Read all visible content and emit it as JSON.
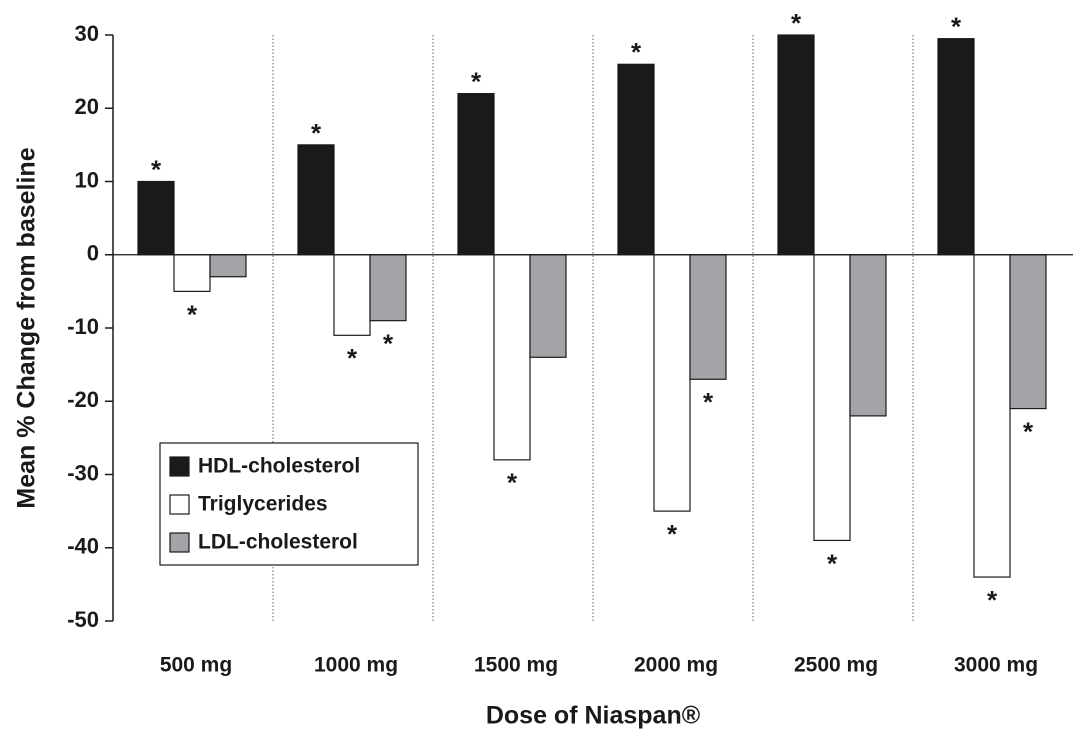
{
  "chart_data": {
    "type": "bar",
    "x_label": "Dose of Niaspan®",
    "y_label": "Mean % Change from baseline",
    "categories": [
      "500 mg",
      "1000 mg",
      "1500 mg",
      "2000 mg",
      "2500 mg",
      "3000 mg"
    ],
    "series": [
      {
        "name": "HDL-cholesterol",
        "color": "#1a1a1a",
        "values": [
          10,
          15,
          22,
          26,
          30,
          29.5
        ],
        "annotations": [
          "*",
          "*",
          "*",
          "*",
          "*",
          "*"
        ]
      },
      {
        "name": "Triglycerides",
        "color": "#ffffff",
        "values": [
          -5,
          -11,
          -28,
          -35,
          -39,
          -44
        ],
        "annotations": [
          "*",
          "*",
          "*",
          "*",
          "*",
          "*"
        ]
      },
      {
        "name": "LDL-cholesterol",
        "color": "#a3a4a8",
        "values": [
          -3,
          -9,
          -14,
          -17,
          -22,
          -21
        ],
        "annotations": [
          null,
          "*",
          null,
          "*",
          null,
          "*"
        ]
      }
    ],
    "ylim": [
      -50,
      30
    ],
    "yticks": [
      30,
      20,
      10,
      0,
      -10,
      -20,
      -30,
      -40,
      -50
    ],
    "legend": "lower left"
  }
}
